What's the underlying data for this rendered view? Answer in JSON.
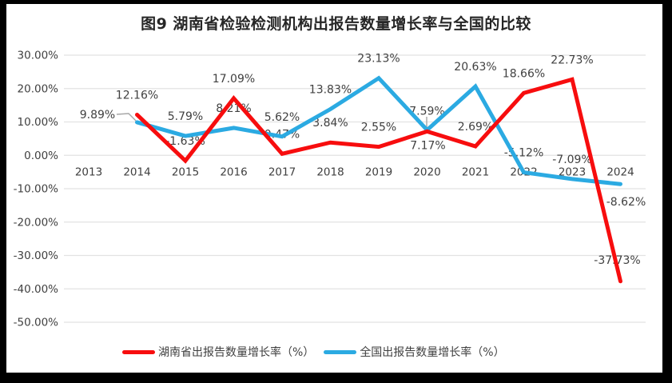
{
  "chart_data": {
    "type": "line",
    "title": "图9 湖南省检验检测机构出报告数量增长率与全国的比较",
    "categories": [
      "2013",
      "2014",
      "2015",
      "2016",
      "2017",
      "2018",
      "2019",
      "2020",
      "2021",
      "2022",
      "2023",
      "2024"
    ],
    "series": [
      {
        "name": "湖南省出报告数量增长率（%）",
        "color": "#F70D0E",
        "start_category": "2014",
        "values": [
          12.16,
          -1.63,
          17.09,
          0.47,
          3.84,
          2.55,
          7.17,
          2.69,
          18.66,
          22.73,
          -37.73
        ],
        "labels": [
          "12.16%",
          "-1.63%",
          "17.09%",
          "0.47%",
          "3.84%",
          "2.55%",
          "7.17%",
          "2.69%",
          "18.66%",
          "22.73%",
          "-37.73%"
        ]
      },
      {
        "name": "全国出报告数量增长率（%）",
        "color": "#2BAAE2",
        "start_category": "2014",
        "values": [
          9.89,
          5.79,
          8.21,
          5.62,
          13.83,
          23.13,
          7.59,
          20.63,
          -5.12,
          -7.09,
          -8.62
        ],
        "labels": [
          "9.89%",
          "5.79%",
          "8.21%",
          "5.62%",
          "13.83%",
          "23.13%",
          "7.59%",
          "20.63%",
          "-5.12%",
          "-7.09%",
          "-8.62%"
        ]
      }
    ],
    "y_ticks": [
      "30.00%",
      "20.00%",
      "10.00%",
      "0.00%",
      "-10.00%",
      "-20.00%",
      "-30.00%",
      "-40.00%",
      "-50.00%"
    ],
    "ylim": [
      -50,
      30
    ],
    "grid": true,
    "legend_position": "bottom",
    "colors": {
      "gridline": "#E2E2E2",
      "axis_text": "#404040",
      "data_label_text": "#404040",
      "leader_line": "#A6A6A6",
      "frame": "#000000",
      "background": "#FFFFFF"
    }
  }
}
